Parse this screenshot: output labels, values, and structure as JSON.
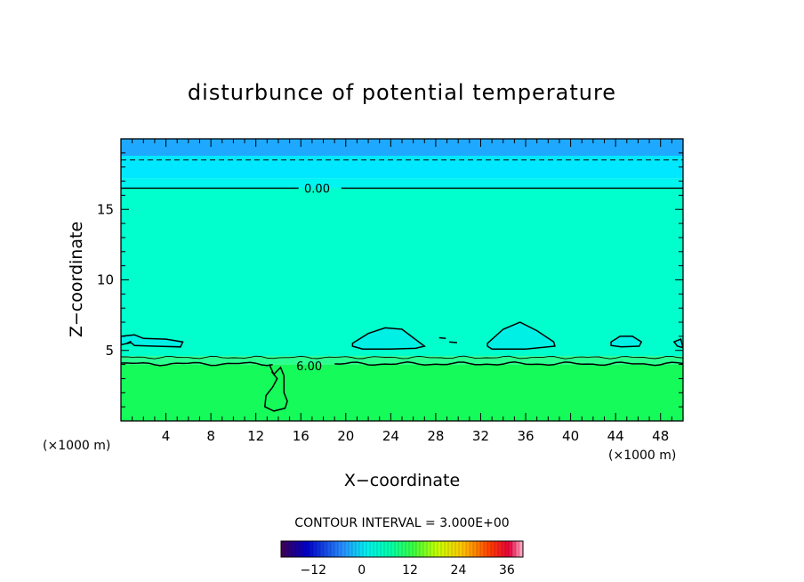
{
  "chart_data": {
    "type": "contour",
    "title": "disturbunce of potential temperature",
    "xlabel": "X−coordinate",
    "ylabel": "Z−coordinate",
    "x_unit_left": "(×1000 m)",
    "x_unit_right": "(×1000 m)",
    "xlim": [
      0,
      50
    ],
    "ylim": [
      0,
      20
    ],
    "x_ticks": [
      4,
      8,
      12,
      16,
      20,
      24,
      28,
      32,
      36,
      40,
      44,
      48
    ],
    "y_ticks": [
      5,
      10,
      15
    ],
    "x_tick_labels": [
      "4",
      "8",
      "12",
      "16",
      "20",
      "24",
      "28",
      "32",
      "36",
      "40",
      "44",
      "48"
    ],
    "y_tick_labels": [
      "5",
      "10",
      "15"
    ],
    "contour_interval_text": "CONTOUR INTERVAL = 3.000E+00",
    "contour_labels": [
      {
        "text": "0.00",
        "x": 16.3,
        "z": 16.5
      },
      {
        "text": "6.00",
        "x": 15.6,
        "z": 3.9
      }
    ],
    "bands": [
      {
        "z0": 18.8,
        "z1": 20.0,
        "color": "#1ea8ff"
      },
      {
        "z0": 17.2,
        "z1": 18.8,
        "color": "#00e8ff"
      },
      {
        "z0": 16.5,
        "z1": 17.2,
        "color": "#00f4f0"
      },
      {
        "z0": 4.6,
        "z1": 16.5,
        "color": "#00ffcc"
      },
      {
        "z0": 4.0,
        "z1": 4.6,
        "color": "#2bff90"
      },
      {
        "z0": 0.0,
        "z1": 4.0,
        "color": "#14fb5a"
      }
    ],
    "colorbar": {
      "min": -20,
      "max": 40,
      "tick_labels": [
        "−12",
        "0",
        "12",
        "24",
        "36"
      ],
      "tick_values": [
        -12,
        0,
        12,
        24,
        36
      ]
    }
  }
}
